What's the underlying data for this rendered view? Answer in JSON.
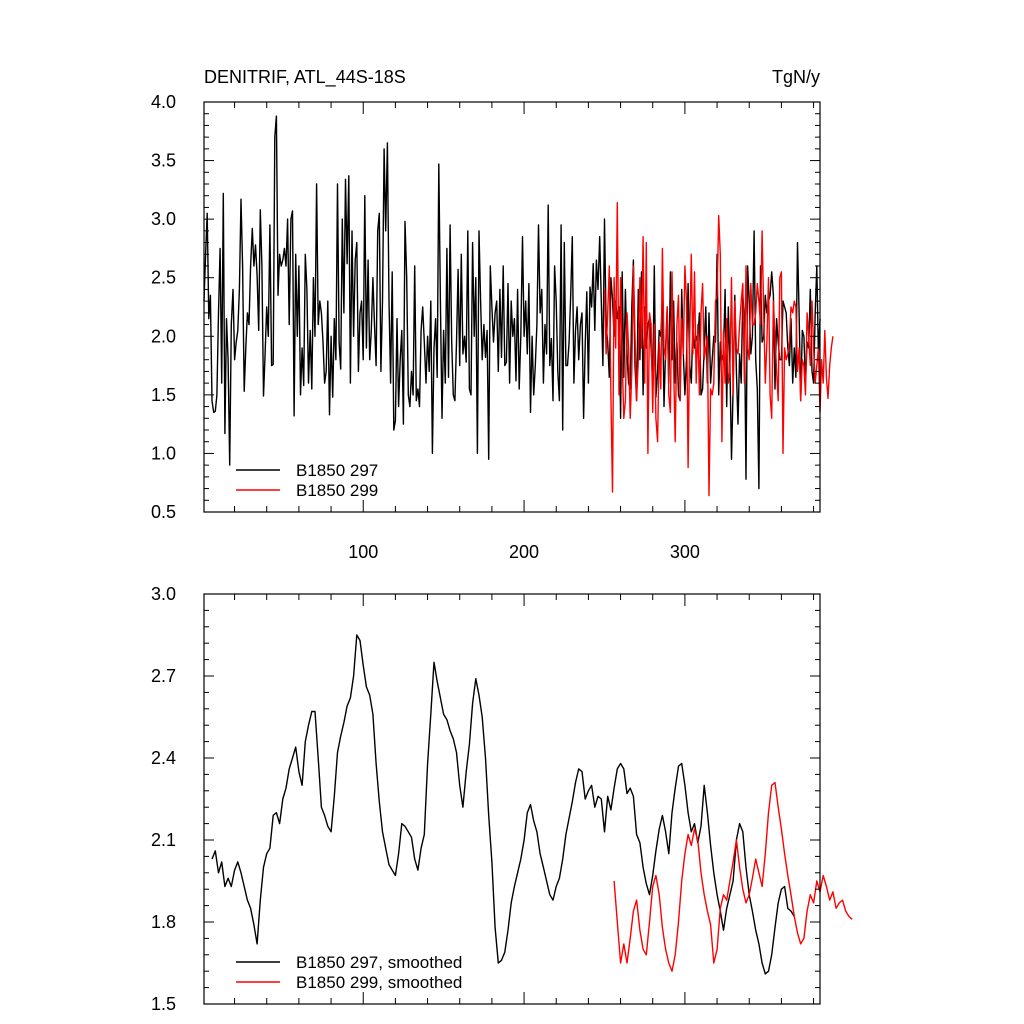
{
  "chart_data": [
    {
      "type": "line",
      "title": "DENITRIF, ATL_44S-18S",
      "units": "TgN/y",
      "xlabel": "",
      "ylabel": "",
      "xlim": [
        1,
        384
      ],
      "ylim": [
        0.5,
        4.0
      ],
      "x_tick_labels": [
        "100",
        "200",
        "300"
      ],
      "y_tick_labels": [
        "0.5",
        "1.0",
        "1.5",
        "2.0",
        "2.5",
        "3.0",
        "3.5",
        "4.0"
      ],
      "legend_position": "lower-left",
      "series": [
        {
          "name": "B1850 297",
          "color": "#000000",
          "x_start": 1,
          "x_step": 1,
          "values": [
            2.3,
            2.7,
            3.05,
            2.15,
            2.35,
            1.45,
            1.35,
            1.36,
            1.5,
            2.2,
            2.75,
            1.6,
            3.22,
            1.17,
            2.15,
            1.8,
            0.9,
            2.1,
            2.4,
            1.8,
            1.95,
            2.05,
            2.4,
            3.17,
            2.6,
            1.53,
            1.9,
            2.2,
            2.1,
            2.6,
            2.92,
            2.6,
            2.78,
            2.52,
            2.05,
            3.08,
            2.6,
            1.49,
            1.85,
            2.25,
            2.0,
            2.95,
            1.75,
            1.76,
            3.7,
            3.88,
            2.35,
            2.7,
            2.6,
            2.65,
            2.75,
            2.6,
            3.0,
            2.1,
            3.0,
            3.07,
            1.32,
            2.7,
            2.0,
            2.6,
            1.5,
            1.9,
            1.58,
            2.7,
            2.4,
            1.6,
            2.05,
            1.55,
            2.5,
            2.0,
            3.3,
            2.1,
            2.3,
            2.2,
            1.95,
            1.6,
            1.7,
            2.3,
            1.33,
            2.0,
            1.48,
            2.15,
            1.8,
            3.3,
            1.95,
            1.72,
            3.0,
            2.2,
            3.34,
            2.62,
            3.37,
            1.6,
            2.9,
            2.0,
            2.65,
            2.8,
            1.7,
            2.2,
            2.3,
            1.8,
            3.2,
            1.9,
            2.65,
            1.8,
            2.05,
            2.5,
            2.1,
            1.75,
            2.9,
            3.05,
            1.7,
            2.3,
            3.6,
            2.9,
            3.65,
            2.3,
            1.6,
            2.55,
            1.2,
            1.28,
            2.15,
            1.4,
            1.8,
            2.05,
            1.25,
            2.98,
            2.5,
            1.5,
            1.4,
            1.7,
            1.5,
            2.6,
            1.45,
            1.55,
            1.4,
            2.05,
            2.25,
            1.95,
            1.6,
            2.0,
            1.7,
            2.3,
            1.0,
            1.9,
            2.15,
            1.65,
            3.47,
            2.3,
            1.3,
            2.05,
            1.6,
            2.75,
            1.65,
            2.95,
            1.95,
            1.5,
            1.45,
            1.95,
            2.57,
            1.75,
            2.7,
            1.85,
            2.0,
            1.78,
            2.9,
            1.55,
            1.5,
            2.8,
            2.0,
            2.5,
            1.0,
            2.9,
            2.3,
            1.8,
            2.1,
            1.82,
            2.05,
            0.95,
            2.6,
            2.25,
            1.95,
            2.2,
            2.3,
            1.7,
            2.4,
            1.82,
            2.6,
            1.75,
            1.78,
            2.45,
            1.6,
            2.3,
            2.0,
            2.15,
            1.62,
            2.4,
            1.55,
            2.0,
            2.85,
            2.0,
            2.3,
            1.85,
            2.45,
            1.35,
            2.0,
            1.5,
            1.75,
            2.1,
            2.95,
            2.2,
            2.4,
            1.6,
            2.1,
            1.85,
            3.12,
            1.75,
            1.98,
            1.45,
            2.6,
            2.3,
            1.7,
            1.45,
            2.95,
            1.2,
            2.8,
            1.75,
            1.75,
            1.95,
            2.35,
            2.85,
            1.6,
            2.05,
            2.25,
            1.8,
            2.1,
            2.2,
            1.3,
            1.93,
            2.38,
            1.6,
            2.42,
            2.25,
            2.62,
            2.05,
            2.65,
            2.4,
            2.85,
            2.3,
            1.75,
            3.0,
            2.1,
            1.95,
            1.65,
            2.5,
            2.32,
            2.0,
            2.3,
            2.15,
            2.25,
            1.3,
            2.55,
            1.65,
            2.4,
            1.85,
            1.6,
            1.55,
            2.25,
            2.65,
            1.75,
            1.45,
            2.4,
            1.8,
            2.55,
            1.5,
            2.25,
            1.9,
            2.1,
            2.15,
            1.9,
            1.6,
            2.6,
            1.48,
            1.7,
            2.05,
            2.0,
            2.3,
            1.4,
            1.9,
            2.25,
            1.6,
            2.55,
            1.8,
            2.3,
            1.6,
            1.95,
            1.5,
            1.45,
            2.4,
            1.85,
            1.5,
            1.8,
            2.45,
            1.75,
            1.6,
            2.1,
            1.9,
            2.0,
            1.95,
            2.2,
            1.5,
            1.55,
            1.9,
            2.25,
            1.6,
            2.2,
            1.6,
            1.8,
            2.0,
            1.95,
            2.7,
            1.5,
            1.95,
            1.8,
            1.85,
            2.4,
            1.4,
            2.25,
            1.75,
            0.95,
            1.55,
            2.35,
            1.7,
            1.25,
            1.85,
            1.6,
            2.35,
            2.15,
            0.78,
            2.6,
            2.3,
            1.85,
            2.0,
            2.9,
            1.8,
            1.55,
            0.7,
            2.6,
            1.95,
            2.0,
            2.35,
            2.2,
            2.3,
            2.35,
            2.55,
            2.35,
            1.55,
            2.15,
            1.95,
            1.8,
            1.8,
            2.3,
            2.25,
            2.2,
            1.9,
            1.75,
            2.15,
            1.6,
            1.9,
            1.65,
            2.8,
            2.2,
            1.45,
            2.05,
            2.0,
            1.6,
            1.95,
            1.9,
            2.4,
            1.7,
            1.6,
            2.2,
            2.6,
            1.85,
            2.15
          ]
        },
        {
          "name": "B1850 299",
          "color": "#ff0000",
          "x_start": 250,
          "x_step": 1,
          "values": [
            2.4,
            1.85,
            2.2,
            2.6,
            1.5,
            0.67,
            2.5,
            1.9,
            3.14,
            1.5,
            2.5,
            1.8,
            1.3,
            1.45,
            2.2,
            1.9,
            1.3,
            1.7,
            2.6,
            2.0,
            1.45,
            1.8,
            2.5,
            1.9,
            2.85,
            1.6,
            2.8,
            1.0,
            2.2,
            2.1,
            1.35,
            2.1,
            1.3,
            1.1,
            1.95,
            1.55,
            2.75,
            1.9,
            1.8,
            2.25,
            1.5,
            1.35,
            2.55,
            1.75,
            1.1,
            2.1,
            2.35,
            1.45,
            2.15,
            1.85,
            2.6,
            2.3,
            0.88,
            2.0,
            2.7,
            1.85,
            2.55,
            1.6,
            2.1,
            1.5,
            2.2,
            2.45,
            1.8,
            1.9,
            2.0,
            0.64,
            1.55,
            1.5,
            1.6,
            2.3,
            2.35,
            3.03,
            2.7,
            1.1,
            2.05,
            1.6,
            2.15,
            1.6,
            1.7,
            2.5,
            1.5,
            2.3,
            1.9,
            1.85,
            2.1,
            2.3,
            2.45,
            1.6,
            2.6,
            1.9,
            1.8,
            2.45,
            2.1,
            2.1,
            2.2,
            2.45,
            2.3,
            2.1,
            2.9,
            2.2,
            1.6,
            1.95,
            2.5,
            1.5,
            1.3,
            2.3,
            2.0,
            1.7,
            1.45,
            2.5,
            2.55,
            1.0,
            1.9,
            1.8,
            1.85,
            1.95,
            2.25,
            2.2,
            2.3,
            2.25,
            1.7,
            1.9,
            1.45,
            1.8,
            1.75,
            1.5,
            2.2,
            2.0,
            1.75,
            2.3,
            1.9,
            1.6,
            1.75,
            1.9,
            1.35,
            1.8,
            1.6,
            2.05,
            1.65,
            1.47,
            1.75,
            1.9,
            2.0
          ]
        }
      ]
    },
    {
      "type": "line",
      "xlim": [
        1,
        384
      ],
      "ylim": [
        1.5,
        3.0
      ],
      "y_tick_labels": [
        "1.5",
        "1.8",
        "2.1",
        "2.4",
        "2.7",
        "3.0"
      ],
      "legend_position": "lower-left",
      "series": [
        {
          "name": "B1850 297, smoothed",
          "color": "#000000",
          "x_start": 6,
          "x_step": 2,
          "values": [
            2.03,
            2.06,
            1.98,
            2.02,
            1.93,
            1.96,
            1.93,
            1.99,
            2.02,
            1.98,
            1.93,
            1.88,
            1.85,
            1.79,
            1.72,
            1.88,
            2.0,
            2.05,
            2.07,
            2.19,
            2.2,
            2.16,
            2.25,
            2.29,
            2.36,
            2.4,
            2.44,
            2.35,
            2.3,
            2.46,
            2.52,
            2.57,
            2.57,
            2.4,
            2.22,
            2.19,
            2.15,
            2.13,
            2.26,
            2.42,
            2.48,
            2.53,
            2.59,
            2.62,
            2.7,
            2.85,
            2.83,
            2.74,
            2.66,
            2.63,
            2.56,
            2.38,
            2.24,
            2.13,
            2.07,
            2.01,
            1.99,
            1.97,
            2.05,
            2.16,
            2.15,
            2.13,
            2.11,
            2.03,
            1.99,
            2.07,
            2.12,
            2.38,
            2.56,
            2.75,
            2.68,
            2.62,
            2.56,
            2.54,
            2.5,
            2.47,
            2.42,
            2.3,
            2.22,
            2.35,
            2.45,
            2.6,
            2.69,
            2.63,
            2.55,
            2.4,
            2.19,
            2.02,
            1.78,
            1.65,
            1.66,
            1.69,
            1.77,
            1.87,
            1.93,
            1.98,
            2.03,
            2.1,
            2.2,
            2.23,
            2.17,
            2.13,
            2.05,
            2.0,
            1.95,
            1.9,
            1.88,
            1.93,
            1.96,
            2.03,
            2.12,
            2.18,
            2.24,
            2.31,
            2.36,
            2.35,
            2.25,
            2.28,
            2.3,
            2.22,
            2.26,
            2.25,
            2.13,
            2.26,
            2.21,
            2.29,
            2.36,
            2.38,
            2.36,
            2.27,
            2.29,
            2.26,
            2.12,
            2.09,
            2.0,
            1.94,
            1.9,
            1.97,
            2.06,
            2.14,
            2.19,
            2.13,
            2.05,
            2.2,
            2.29,
            2.37,
            2.38,
            2.3,
            2.2,
            2.13,
            2.16,
            2.09,
            2.15,
            2.3,
            2.2,
            2.08,
            1.98,
            1.9,
            1.84,
            1.77,
            1.85,
            1.9,
            1.95,
            2.1,
            2.16,
            2.13,
            2.0,
            1.9,
            1.84,
            1.77,
            1.72,
            1.65,
            1.61,
            1.62,
            1.68,
            1.78,
            1.87,
            1.92,
            1.93,
            1.85,
            1.84,
            1.82
          ]
        },
        {
          "name": "B1850 299, smoothed",
          "color": "#ff0000",
          "x_start": 256,
          "x_step": 2,
          "values": [
            1.95,
            1.8,
            1.65,
            1.72,
            1.65,
            1.74,
            1.84,
            1.88,
            1.77,
            1.7,
            1.68,
            1.8,
            1.93,
            1.97,
            1.9,
            1.78,
            1.7,
            1.65,
            1.62,
            1.68,
            1.8,
            1.95,
            2.05,
            2.12,
            2.08,
            2.14,
            2.1,
            1.98,
            1.9,
            1.84,
            1.79,
            1.65,
            1.7,
            1.85,
            1.9,
            1.88,
            1.95,
            2.02,
            2.1,
            2.0,
            1.92,
            1.87,
            1.9,
            1.96,
            2.03,
            1.98,
            1.93,
            2.05,
            2.2,
            2.3,
            2.31,
            2.22,
            2.14,
            2.05,
            1.97,
            1.9,
            1.82,
            1.76,
            1.72,
            1.74,
            1.84,
            1.9,
            1.87,
            1.95,
            1.91,
            1.97,
            1.93,
            1.88,
            1.91,
            1.85,
            1.87,
            1.88,
            1.84,
            1.82,
            1.81
          ]
        }
      ]
    }
  ]
}
